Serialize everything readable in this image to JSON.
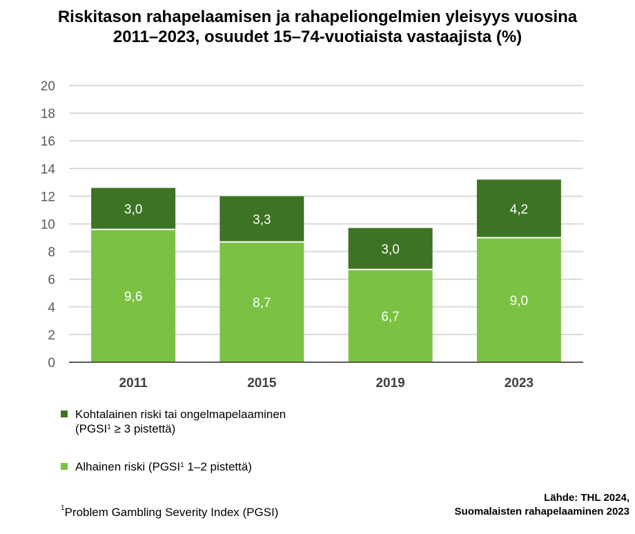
{
  "chart_data": {
    "type": "stacked-bar",
    "title": "Riskitason rahapelaamisen ja rahapeliongelmien yleisyys vuosina 2011–2023, osuudet 15–74-vuotiaista vastaajista (%)",
    "categories": [
      "2011",
      "2015",
      "2019",
      "2023"
    ],
    "series": [
      {
        "name": "Alhainen riski (PGSI1 1–2 pistettä)",
        "color": "#7bc143",
        "values": [
          9.6,
          8.7,
          6.7,
          9.0
        ],
        "labels": [
          "9,6",
          "8,7",
          "6,7",
          "9,0"
        ]
      },
      {
        "name": "Kohtalainen riski tai ongelmapelaaminen (PGSI1 ≥ 3 pistettä)",
        "color": "#3d7324",
        "values": [
          3.0,
          3.3,
          3.0,
          4.2
        ],
        "labels": [
          "3,0",
          "3,3",
          "3,0",
          "4,2"
        ]
      }
    ],
    "ylim": [
      0,
      20
    ],
    "yticks": [
      "0",
      "2",
      "4",
      "6",
      "8",
      "10",
      "12",
      "14",
      "16",
      "18",
      "20"
    ],
    "grid": true,
    "legend": "bottom-left"
  },
  "legend": {
    "dark": {
      "line1": "Kohtalainen riski tai ongelmapelaaminen",
      "line2_pre": "(PGSI",
      "sup": "1",
      "line2_post": " ≥ 3 pistettä)"
    },
    "light": {
      "pre": "Alhainen riski (PGSI",
      "sup": "1",
      "post": " 1–2 pistettä)"
    }
  },
  "footnote": {
    "sup": "1",
    "text": "Problem Gambling Severity Index (PGSI)"
  },
  "source": {
    "line1": "Lähde: THL 2024,",
    "line2": "Suomalaisten rahapelaaminen 2023"
  }
}
